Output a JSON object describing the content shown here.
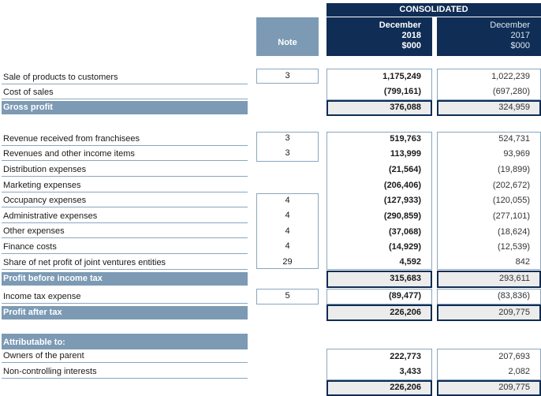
{
  "header": {
    "consolidated": "CONSOLIDATED",
    "note": "Note",
    "col_2018": [
      "December",
      "2018",
      "$000"
    ],
    "col_2017": [
      "December",
      "2017",
      "$000"
    ]
  },
  "sections": [
    {
      "rows": [
        {
          "label": "Sale of products to customers",
          "note": "3",
          "v2018": "1,175,249",
          "v2017": "1,022,239"
        },
        {
          "label": "Cost of sales",
          "note": "",
          "v2018": "(799,161)",
          "v2017": "(697,280)"
        },
        {
          "label": "Gross profit",
          "note": "",
          "v2018": "376,088",
          "v2017": "324,959"
        }
      ]
    },
    {
      "rows": [
        {
          "label": "Revenue received from franchisees",
          "note": "3",
          "v2018": "519,763",
          "v2017": "524,731"
        },
        {
          "label": "Revenues and other income items",
          "note": "3",
          "v2018": "113,999",
          "v2017": "93,969"
        },
        {
          "label": "Distribution expenses",
          "note": "",
          "v2018": "(21,564)",
          "v2017": "(19,899)"
        },
        {
          "label": "Marketing expenses",
          "note": "",
          "v2018": "(206,406)",
          "v2017": "(202,672)"
        },
        {
          "label": "Occupancy expenses",
          "note": "4",
          "v2018": "(127,933)",
          "v2017": "(120,055)"
        },
        {
          "label": "Administrative expenses",
          "note": "4",
          "v2018": "(290,859)",
          "v2017": "(277,101)"
        },
        {
          "label": "Other expenses",
          "note": "4",
          "v2018": "(37,068)",
          "v2017": "(18,624)"
        },
        {
          "label": "Finance costs",
          "note": "4",
          "v2018": "(14,929)",
          "v2017": "(12,539)"
        },
        {
          "label": "Share of net profit of joint ventures entities",
          "note": "29",
          "v2018": "4,592",
          "v2017": "842"
        },
        {
          "label": "Profit before income tax",
          "note": "",
          "v2018": "315,683",
          "v2017": "293,611"
        },
        {
          "label": "Income tax expense",
          "note": "5",
          "v2018": "(89,477)",
          "v2017": "(83,836)"
        },
        {
          "label": "Profit after tax",
          "note": "",
          "v2018": "226,206",
          "v2017": "209,775"
        }
      ]
    },
    {
      "rows": [
        {
          "label": "Attributable to:",
          "note": "",
          "v2018": "",
          "v2017": ""
        },
        {
          "label": "Owners of the parent",
          "note": "",
          "v2018": "222,773",
          "v2017": "207,693"
        },
        {
          "label": "Non-controlling interests",
          "note": "",
          "v2018": "3,433",
          "v2017": "2,082"
        },
        {
          "label": "",
          "note": "",
          "v2018": "226,206",
          "v2017": "209,775"
        }
      ]
    }
  ]
}
